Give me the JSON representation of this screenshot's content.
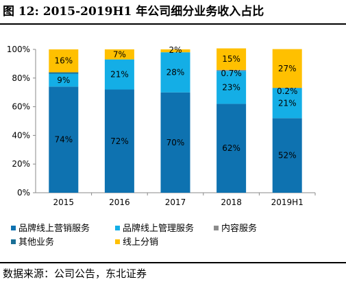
{
  "header": {
    "title": "图 12: 2015-2019H1 年公司细分业务收入占比"
  },
  "footer": {
    "source": "数据来源：公司公告，东北证券"
  },
  "colors": {
    "blue": "#0e72b0",
    "lightblue": "#14aee6",
    "gray": "#8c8c8c",
    "darkblue": "#1a6f96",
    "yellow": "#ffc000"
  },
  "chart_data": {
    "type": "bar",
    "stacked": true,
    "categories": [
      "2015",
      "2016",
      "2017",
      "2018",
      "2019H1"
    ],
    "ylim": [
      0,
      100
    ],
    "yticks": [
      "0%",
      "20%",
      "40%",
      "60%",
      "80%",
      "100%"
    ],
    "series": [
      {
        "name": "品牌线上营销服务",
        "color": "#0e72b0",
        "values": [
          74,
          72,
          70,
          62,
          52
        ],
        "labels": [
          "74%",
          "72%",
          "70%",
          "62%",
          "52%"
        ]
      },
      {
        "name": "品牌线上管理服务",
        "color": "#14aee6",
        "values": [
          9,
          21,
          28,
          23,
          21
        ],
        "labels": [
          "9%",
          "21%",
          "28%",
          "23%",
          "21%"
        ]
      },
      {
        "name": "内容服务",
        "color": "#8c8c8c",
        "values": [
          0,
          0,
          0,
          0.7,
          0.2
        ],
        "labels": [
          "",
          "",
          "",
          "0.7%",
          "0.2%"
        ]
      },
      {
        "name": "其他业务",
        "color": "#1a6f96",
        "values": [
          1,
          0,
          0,
          0,
          0
        ],
        "labels": [
          "",
          "",
          "",
          "",
          ""
        ]
      },
      {
        "name": "线上分销",
        "color": "#ffc000",
        "values": [
          16,
          7,
          2,
          15,
          27
        ],
        "labels": [
          "16%",
          "7%",
          "2%",
          "15%",
          "27%"
        ]
      }
    ],
    "legend": "bottom"
  }
}
